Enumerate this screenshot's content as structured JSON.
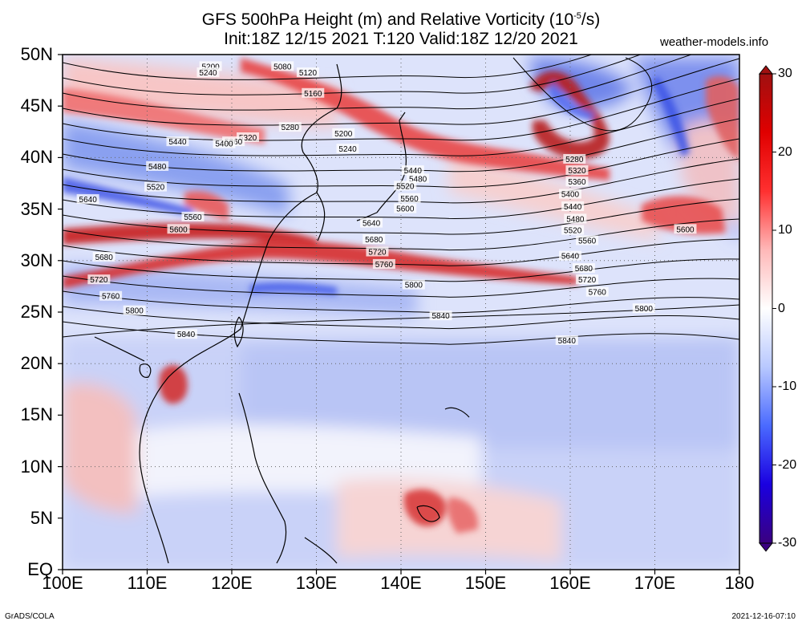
{
  "title": {
    "line1_prefix": "GFS 500hPa Height (m) and Relative Vorticity (10",
    "line1_exp": "-5",
    "line1_suffix": "/s)",
    "line2": "Init:18Z 12/15 2021 T:120 Valid:18Z 12/20 2021"
  },
  "site": "weather-models.info",
  "credit": "GrADS/COLA",
  "timestamp": "2021-12-16-07:10",
  "map": {
    "projection": "lat-lon",
    "lon_range": [
      100,
      180
    ],
    "lat_range": [
      0,
      50
    ],
    "grid": "dotted every 10 degrees",
    "lat_labels": [
      "50N",
      "45N",
      "40N",
      "35N",
      "30N",
      "25N",
      "20N",
      "15N",
      "10N",
      "5N",
      "EQ"
    ],
    "lon_labels": [
      "100E",
      "110E",
      "120E",
      "130E",
      "140E",
      "150E",
      "160E",
      "170E",
      "180"
    ],
    "contour_labels": [
      {
        "text": "5200",
        "lon": 117.5,
        "lat": 48.8
      },
      {
        "text": "5240",
        "lon": 117.2,
        "lat": 48.2
      },
      {
        "text": "5080",
        "lon": 126.0,
        "lat": 48.8
      },
      {
        "text": "5120",
        "lon": 129.0,
        "lat": 48.2
      },
      {
        "text": "5160",
        "lon": 129.6,
        "lat": 46.2
      },
      {
        "text": "5200",
        "lon": 133.2,
        "lat": 42.3
      },
      {
        "text": "5240",
        "lon": 133.7,
        "lat": 40.8
      },
      {
        "text": "5280",
        "lon": 126.9,
        "lat": 42.9
      },
      {
        "text": "5320",
        "lon": 121.9,
        "lat": 41.9
      },
      {
        "text": "5360",
        "lon": 120.2,
        "lat": 41.5
      },
      {
        "text": "5400",
        "lon": 119.1,
        "lat": 41.3
      },
      {
        "text": "5440",
        "lon": 113.6,
        "lat": 41.5
      },
      {
        "text": "5480",
        "lon": 111.2,
        "lat": 39.1
      },
      {
        "text": "5520",
        "lon": 111.0,
        "lat": 37.1
      },
      {
        "text": "5560",
        "lon": 115.4,
        "lat": 34.2
      },
      {
        "text": "5600",
        "lon": 113.7,
        "lat": 33.0
      },
      {
        "text": "5640",
        "lon": 103.0,
        "lat": 35.9
      },
      {
        "text": "5680",
        "lon": 104.9,
        "lat": 30.3
      },
      {
        "text": "5720",
        "lon": 104.3,
        "lat": 28.1
      },
      {
        "text": "5760",
        "lon": 105.7,
        "lat": 26.5
      },
      {
        "text": "5800",
        "lon": 108.5,
        "lat": 25.1
      },
      {
        "text": "5840",
        "lon": 114.6,
        "lat": 22.8
      },
      {
        "text": "5440",
        "lon": 141.4,
        "lat": 38.7
      },
      {
        "text": "5480",
        "lon": 142.0,
        "lat": 37.9
      },
      {
        "text": "5520",
        "lon": 140.5,
        "lat": 37.2
      },
      {
        "text": "5560",
        "lon": 141.0,
        "lat": 36.0
      },
      {
        "text": "5600",
        "lon": 140.5,
        "lat": 35.0
      },
      {
        "text": "5640",
        "lon": 136.5,
        "lat": 33.6
      },
      {
        "text": "5680",
        "lon": 136.8,
        "lat": 32.0
      },
      {
        "text": "5720",
        "lon": 137.2,
        "lat": 30.8
      },
      {
        "text": "5760",
        "lon": 138.0,
        "lat": 29.6
      },
      {
        "text": "5800",
        "lon": 141.5,
        "lat": 27.6
      },
      {
        "text": "5840",
        "lon": 144.7,
        "lat": 24.6
      },
      {
        "text": "5280",
        "lon": 160.5,
        "lat": 39.8
      },
      {
        "text": "5320",
        "lon": 160.8,
        "lat": 38.7
      },
      {
        "text": "5360",
        "lon": 160.8,
        "lat": 37.6
      },
      {
        "text": "5400",
        "lon": 160.0,
        "lat": 36.4
      },
      {
        "text": "5440",
        "lon": 160.3,
        "lat": 35.2
      },
      {
        "text": "5480",
        "lon": 160.6,
        "lat": 34.0
      },
      {
        "text": "5520",
        "lon": 160.3,
        "lat": 32.9
      },
      {
        "text": "5560",
        "lon": 162.0,
        "lat": 31.9
      },
      {
        "text": "5600",
        "lon": 173.6,
        "lat": 33.0
      },
      {
        "text": "5640",
        "lon": 160.0,
        "lat": 30.4
      },
      {
        "text": "5680",
        "lon": 161.6,
        "lat": 29.2
      },
      {
        "text": "5720",
        "lon": 162.0,
        "lat": 28.1
      },
      {
        "text": "5760",
        "lon": 163.2,
        "lat": 26.9
      },
      {
        "text": "5800",
        "lon": 168.7,
        "lat": 25.3
      },
      {
        "text": "5840",
        "lon": 159.6,
        "lat": 22.2
      }
    ]
  },
  "colorbar": {
    "range": [
      -30,
      30
    ],
    "ticks": [
      "30",
      "20",
      "10",
      "0",
      "-10",
      "-20",
      "-30"
    ],
    "colors": [
      "#3a0080",
      "#1a00e0",
      "#4a6aff",
      "#b8c8ff",
      "#ffffff",
      "#ffb8b8",
      "#ff3030",
      "#e00000",
      "#a01010"
    ]
  }
}
